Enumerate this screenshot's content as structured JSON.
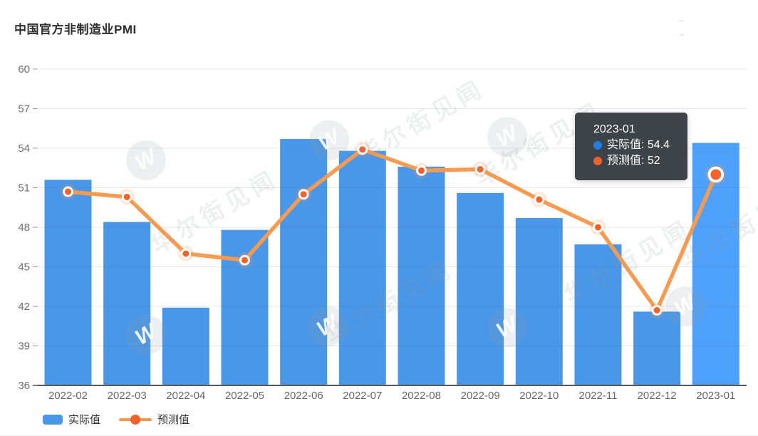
{
  "header": {
    "title": "中国官方非制造业PMI"
  },
  "chart_data": {
    "type": "bar",
    "title": "中国官方非制造业PMI",
    "categories": [
      "2022-02",
      "2022-03",
      "2022-04",
      "2022-05",
      "2022-06",
      "2022-07",
      "2022-08",
      "2022-09",
      "2022-10",
      "2022-11",
      "2022-12",
      "2023-01"
    ],
    "series": [
      {
        "name": "实际值",
        "type": "bar",
        "color": "#4897e9",
        "highlight_color": "#4da1fb",
        "values": [
          51.6,
          48.4,
          41.9,
          47.8,
          54.7,
          53.8,
          52.6,
          50.6,
          48.7,
          46.7,
          41.6,
          54.4
        ]
      },
      {
        "name": "预测值",
        "type": "line",
        "color": "#f89b51",
        "marker_color": "#f4622a",
        "values": [
          50.7,
          50.3,
          46,
          45.5,
          50.5,
          53.9,
          52.3,
          52.4,
          50.1,
          48,
          41.7,
          52
        ]
      }
    ],
    "ylim": [
      36,
      60
    ],
    "ytick_step": 3,
    "yticks": [
      36,
      39,
      42,
      45,
      48,
      51,
      54,
      57,
      60
    ],
    "grid": true,
    "legend_position": "bottom-left",
    "highlight_index": 11,
    "axis_label_color": "#6e6e6e"
  },
  "tooltip": {
    "title": "2023-01",
    "rows": [
      {
        "text": "实际值: 54.4",
        "dot_color": "#1f7de4"
      },
      {
        "text": "预测值: 52",
        "dot_color": "#f4622a"
      }
    ]
  },
  "watermark": {
    "text": "华尔街见闻",
    "logo_letter": "W"
  }
}
